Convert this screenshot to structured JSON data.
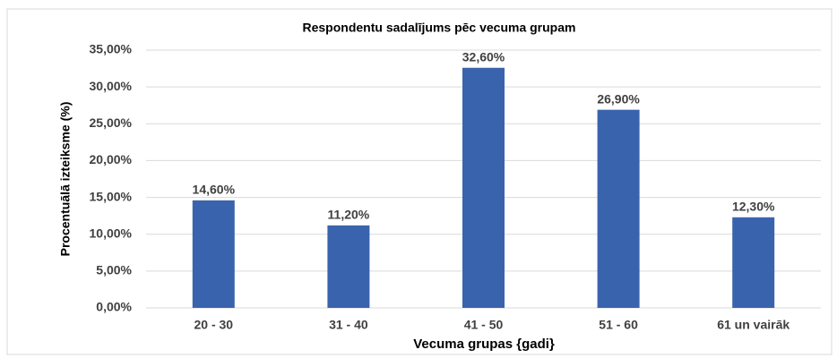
{
  "chart_data": {
    "type": "bar",
    "title": "Respondentu sadalījums  pēc vecuma grupam",
    "x_label": "Vecuma grupas {gadi}",
    "y_label": "Procentuālā izteiksme (%)",
    "categories": [
      "20 - 30",
      "31 - 40",
      "41 - 50",
      "51 - 60",
      "61 un vairāk"
    ],
    "values": [
      14.6,
      11.2,
      32.6,
      26.9,
      12.3
    ],
    "value_labels": [
      "14,60%",
      "11,20%",
      "32,60%",
      "26,90%",
      "12,30%"
    ],
    "color": "#3a63ad",
    "ylim": [
      0,
      35
    ],
    "yticks": [
      {
        "value": 0,
        "label": "0,00%"
      },
      {
        "value": 5,
        "label": "5,00%"
      },
      {
        "value": 10,
        "label": "10,00%"
      },
      {
        "value": 15,
        "label": "15,00%"
      },
      {
        "value": 20,
        "label": "20,00%"
      },
      {
        "value": 25,
        "label": "25,00%"
      },
      {
        "value": 30,
        "label": "30,00%"
      },
      {
        "value": 35,
        "label": "35,00%"
      }
    ],
    "grid": true
  }
}
